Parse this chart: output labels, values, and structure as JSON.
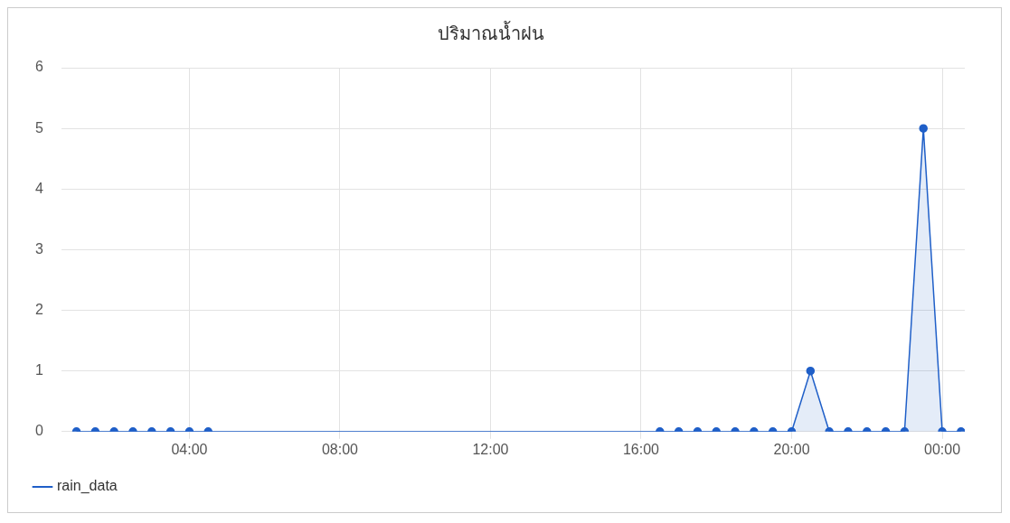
{
  "chart_data": {
    "type": "area",
    "title": "ปริมาณน้ำฝน",
    "x": [
      1,
      1.5,
      2,
      2.5,
      3,
      3.5,
      4,
      4.5,
      16.5,
      17,
      17.5,
      18,
      18.5,
      19,
      19.5,
      20,
      20.5,
      21,
      21.5,
      22,
      22.5,
      23,
      23.5,
      24,
      24.5
    ],
    "series": [
      {
        "name": "rain_data",
        "color": "#1f5fc8",
        "values": [
          0,
          0,
          0,
          0,
          0,
          0,
          0,
          0,
          0,
          0,
          0,
          0,
          0,
          0,
          0,
          0,
          1,
          0,
          0,
          0,
          0,
          0,
          5,
          0,
          0
        ]
      }
    ],
    "xlim": [
      0.6,
      24.6
    ],
    "xticks": [
      {
        "value": 4,
        "label": "04:00"
      },
      {
        "value": 8,
        "label": "08:00"
      },
      {
        "value": 12,
        "label": "12:00"
      },
      {
        "value": 16,
        "label": "16:00"
      },
      {
        "value": 20,
        "label": "20:00"
      },
      {
        "value": 24,
        "label": "00:00"
      }
    ],
    "ylim": [
      0,
      6
    ],
    "yticks": [
      0,
      1,
      2,
      3,
      4,
      5,
      6
    ],
    "grid": true,
    "legend": "bottom left",
    "marker": "circle",
    "line_style": "solid"
  }
}
